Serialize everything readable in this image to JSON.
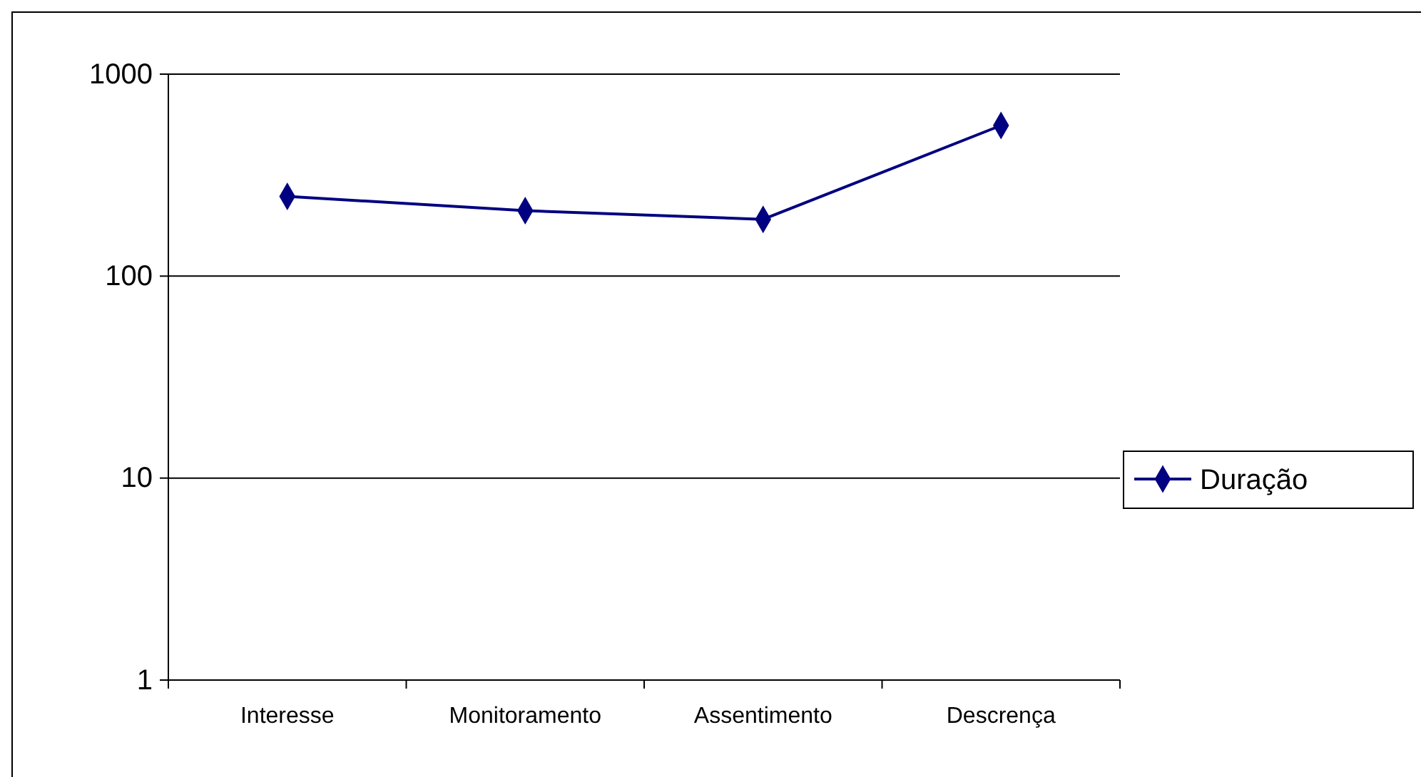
{
  "chart_data": {
    "type": "line",
    "categories": [
      "Interesse",
      "Monitoramento",
      "Assentimento",
      "Descrença"
    ],
    "series": [
      {
        "name": "Duração",
        "color": "#000080",
        "values": [
          248,
          211,
          191,
          557
        ]
      }
    ],
    "log": "y",
    "ylim": [
      1,
      1000
    ],
    "yticks": [
      1,
      10,
      100,
      1000
    ],
    "grid": "y",
    "legend": "right",
    "marker": "diamond",
    "line_style": "solid"
  }
}
